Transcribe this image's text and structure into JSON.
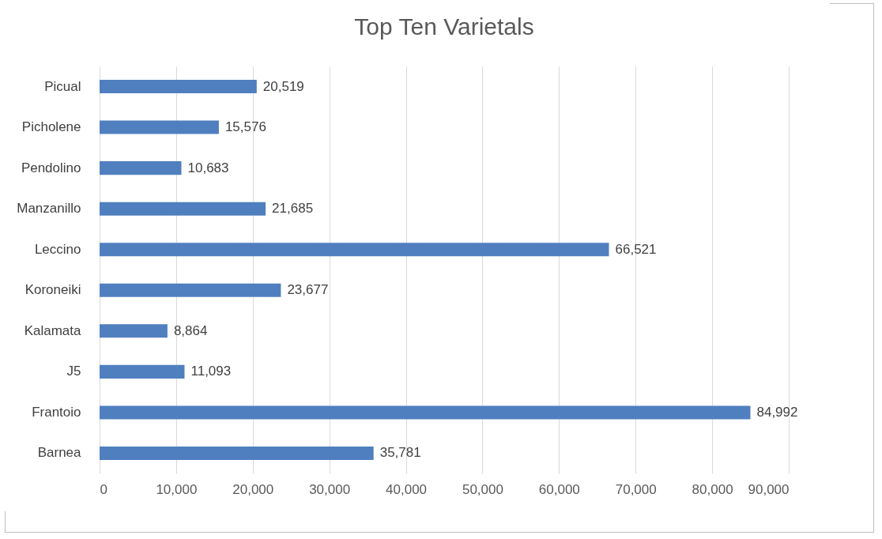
{
  "chart_data": {
    "type": "bar",
    "orientation": "horizontal",
    "title": "Top Ten Varietals",
    "categories": [
      "Picual",
      "Picholene",
      "Pendolino",
      "Manzanillo",
      "Leccino",
      "Koroneiki",
      "Kalamata",
      "J5",
      "Frantoio",
      "Barnea"
    ],
    "values": [
      20519,
      15576,
      10683,
      21685,
      66521,
      23677,
      8864,
      11093,
      84992,
      35781
    ],
    "value_labels": [
      "20,519",
      "15,576",
      "10,683",
      "21,685",
      "66,521",
      "23,677",
      "8,864",
      "11,093",
      "84,992",
      "35,781"
    ],
    "color": "#4f7fbf",
    "grid": "x",
    "xlim": [
      0,
      90000
    ],
    "xticks": [
      0,
      {
        "value": 10000,
        "label": "10,000"
      },
      {
        "value": 20000,
        "label": "20,000"
      },
      {
        "value": 30000,
        "label": "30,000"
      },
      {
        "value": 40000,
        "label": "40,000"
      },
      {
        "value": 50000,
        "label": "50,000"
      },
      {
        "value": 60000,
        "label": "60,000"
      },
      {
        "value": 70000,
        "label": "70,000"
      },
      {
        "value": 80000,
        "label": "80,000"
      },
      {
        "value": 90000,
        "label": "90,000"
      }
    ]
  }
}
